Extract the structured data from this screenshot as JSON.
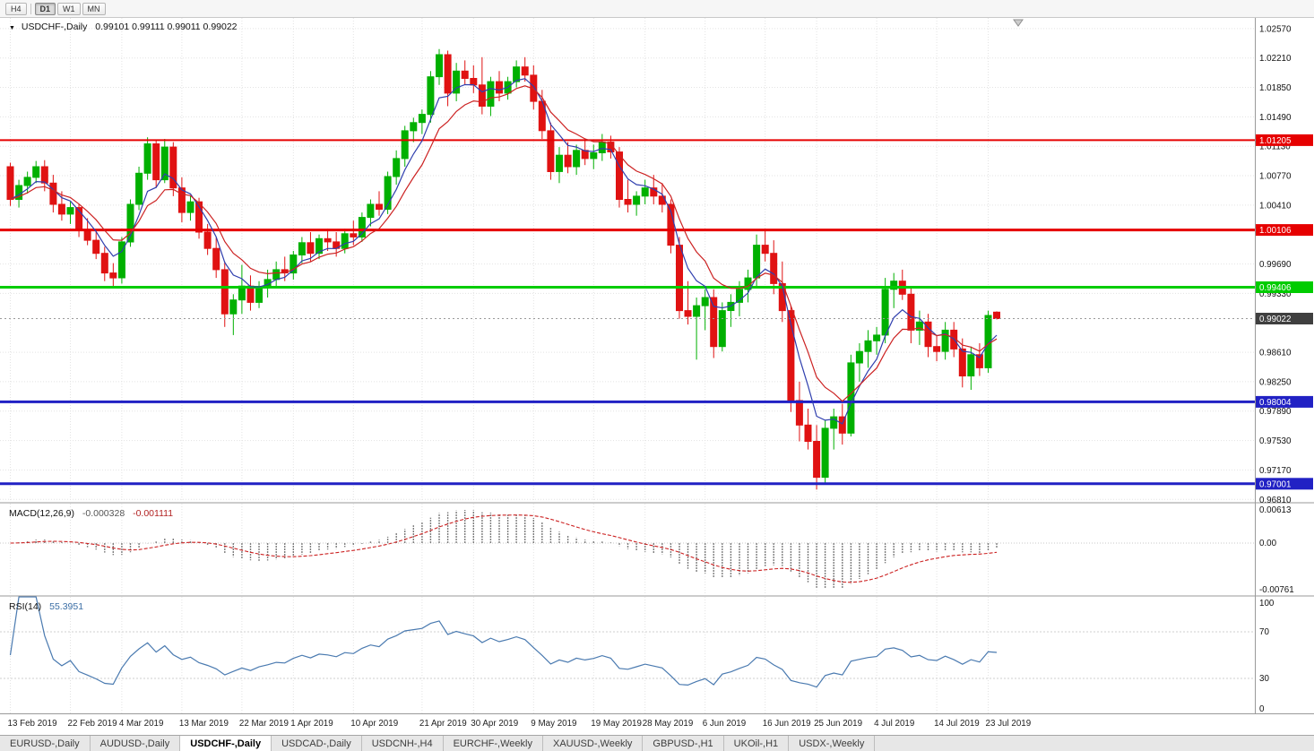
{
  "icons": {
    "dropdown": "▼"
  },
  "toolbar": {
    "buttons": [
      {
        "label": "H4",
        "active": false
      },
      {
        "label": "D1",
        "active": true
      },
      {
        "label": "W1",
        "active": false
      },
      {
        "label": "MN",
        "active": false
      }
    ]
  },
  "tabs": [
    {
      "label": "EURUSD-,Daily",
      "active": false
    },
    {
      "label": "AUDUSD-,Daily",
      "active": false
    },
    {
      "label": "USDCHF-,Daily",
      "active": true
    },
    {
      "label": "USDCAD-,Daily",
      "active": false
    },
    {
      "label": "USDCNH-,H4",
      "active": false
    },
    {
      "label": "EURCHF-,Weekly",
      "active": false
    },
    {
      "label": "XAUUSD-,Weekly",
      "active": false
    },
    {
      "label": "GBPUSD-,H1",
      "active": false
    },
    {
      "label": "UKOil-,H1",
      "active": false
    },
    {
      "label": "USDX-,Weekly",
      "active": false
    }
  ],
  "chart_data": {
    "type": "candlestick",
    "title": {
      "symbol": "USDCHF-,Daily",
      "ohlc": "0.99101 0.99111 0.99011 0.99022"
    },
    "ylim": [
      0.9678,
      1.027
    ],
    "y_axis_labels": [
      "1.02570",
      "1.02210",
      "1.01850",
      "1.01490",
      "1.01130",
      "1.00770",
      "1.00410",
      "0.99690",
      "0.99330",
      "0.98610",
      "0.98250",
      "0.97890",
      "0.97530",
      "0.97170",
      "0.96810"
    ],
    "colors": {
      "bull": "#00b000",
      "bear": "#e01212"
    },
    "hlines": [
      {
        "label": "1.01205",
        "value": 1.01205,
        "color": "#e60000",
        "width": 2
      },
      {
        "label": "1.00106",
        "value": 1.00106,
        "color": "#e60000",
        "width": 3
      },
      {
        "label": "0.99406",
        "value": 0.99406,
        "color": "#00cc00",
        "width": 3
      },
      {
        "label": "0.98004",
        "value": 0.98004,
        "color": "#2121c4",
        "width": 3
      },
      {
        "label": "0.97001",
        "value": 0.97001,
        "color": "#2121c4",
        "width": 3
      }
    ],
    "bid_line": {
      "label": "0.99022",
      "value": 0.99022,
      "badge_color": "#3f3f3f"
    },
    "moving_averages": [
      {
        "period": 5,
        "method": "ema",
        "color": "#2f3fae"
      },
      {
        "period": 9,
        "method": "ema",
        "color": "#cc2222"
      }
    ],
    "macd": {
      "label": "MACD(12,26,9)",
      "params": [
        12,
        26,
        9
      ],
      "value_main": "-0.000328",
      "value_signal": "-0.001111",
      "axis_labels": [
        "0.00613",
        "0.00",
        "-0.00761"
      ],
      "histogram_color": "#7d7d7d",
      "signal_color": "#cc2222"
    },
    "rsi": {
      "label": "RSI(14)",
      "params": [
        14
      ],
      "value": "55.3951",
      "axis_labels": [
        "100",
        "70",
        "30",
        "0"
      ],
      "levels": [
        70,
        30
      ],
      "color": "#4a7ab0"
    },
    "xticks": [
      {
        "i": 0,
        "label": "13 Feb 2019"
      },
      {
        "i": 7,
        "label": "22 Feb 2019"
      },
      {
        "i": 13,
        "label": "4 Mar 2019"
      },
      {
        "i": 20,
        "label": "13 Mar 2019"
      },
      {
        "i": 27,
        "label": "22 Mar 2019"
      },
      {
        "i": 33,
        "label": "1 Apr 2019"
      },
      {
        "i": 40,
        "label": "10 Apr 2019"
      },
      {
        "i": 48,
        "label": "21 Apr 2019"
      },
      {
        "i": 54,
        "label": "30 Apr 2019"
      },
      {
        "i": 61,
        "label": "9 May 2019"
      },
      {
        "i": 68,
        "label": "19 May 2019"
      },
      {
        "i": 74,
        "label": "28 May 2019"
      },
      {
        "i": 81,
        "label": "6 Jun 2019"
      },
      {
        "i": 88,
        "label": "16 Jun 2019"
      },
      {
        "i": 94,
        "label": "25 Jun 2019"
      },
      {
        "i": 101,
        "label": "4 Jul 2019"
      },
      {
        "i": 108,
        "label": "14 Jul 2019"
      },
      {
        "i": 114,
        "label": "23 Jul 2019"
      }
    ],
    "candles": [
      [
        1.0088,
        1.0093,
        1.004,
        1.0048
      ],
      [
        1.0048,
        1.0072,
        1.0038,
        1.0065
      ],
      [
        1.0065,
        1.0082,
        1.0055,
        1.0075
      ],
      [
        1.0075,
        1.0095,
        1.0068,
        1.0088
      ],
      [
        1.0088,
        1.0096,
        1.0058,
        1.0068
      ],
      [
        1.0068,
        1.0078,
        1.0032,
        1.0042
      ],
      [
        1.0042,
        1.0058,
        1.0022,
        1.003
      ],
      [
        1.003,
        1.0045,
        1.0018,
        1.0038
      ],
      [
        1.0038,
        1.0042,
        1.0002,
        1.001
      ],
      [
        1.001,
        1.0025,
        0.9992,
        0.9998
      ],
      [
        0.9998,
        1.0012,
        0.9975,
        0.9982
      ],
      [
        0.9982,
        0.999,
        0.9948,
        0.9958
      ],
      [
        0.9958,
        0.997,
        0.994,
        0.9952
      ],
      [
        0.9952,
        1.0002,
        0.9945,
        0.9996
      ],
      [
        0.9996,
        1.0048,
        0.999,
        1.0042
      ],
      [
        1.0042,
        1.0088,
        1.0035,
        1.008
      ],
      [
        1.008,
        1.0124,
        1.0072,
        1.0116
      ],
      [
        1.0116,
        1.012,
        1.0062,
        1.0072
      ],
      [
        1.0072,
        1.0122,
        1.0068,
        1.0112
      ],
      [
        1.0112,
        1.0118,
        1.0052,
        1.0062
      ],
      [
        1.0062,
        1.0075,
        1.002,
        1.0032
      ],
      [
        1.0032,
        1.0052,
        1.0022,
        1.0045
      ],
      [
        1.0045,
        1.005,
        1.0,
        1.0008
      ],
      [
        1.0008,
        1.0018,
        0.998,
        0.9988
      ],
      [
        0.9988,
        1.0002,
        0.9952,
        0.9962
      ],
      [
        0.9962,
        0.9972,
        0.9892,
        0.9908
      ],
      [
        0.9908,
        0.9932,
        0.9882,
        0.9925
      ],
      [
        0.9925,
        0.9968,
        0.9908,
        0.9942
      ],
      [
        0.9942,
        0.9955,
        0.9912,
        0.9922
      ],
      [
        0.9922,
        0.9948,
        0.9915,
        0.994
      ],
      [
        0.994,
        0.9962,
        0.9928,
        0.995
      ],
      [
        0.995,
        0.9972,
        0.994,
        0.9962
      ],
      [
        0.9962,
        0.9978,
        0.9948,
        0.9958
      ],
      [
        0.9958,
        0.9985,
        0.995,
        0.998
      ],
      [
        0.998,
        1.0002,
        0.997,
        0.9995
      ],
      [
        0.9995,
        1.0008,
        0.9972,
        0.9982
      ],
      [
        0.9982,
        1.0005,
        0.9975,
        1.0
      ],
      [
        1.0,
        1.0012,
        0.9985,
        0.9996
      ],
      [
        0.9996,
        1.0008,
        0.9978,
        0.9988
      ],
      [
        0.9988,
        1.0012,
        0.9982,
        1.0006
      ],
      [
        1.0006,
        1.0022,
        0.9992,
        1.0002
      ],
      [
        1.0002,
        1.0032,
        0.9996,
        1.0026
      ],
      [
        1.0026,
        1.0048,
        1.0015,
        1.0042
      ],
      [
        1.0042,
        1.0058,
        1.0028,
        1.0036
      ],
      [
        1.0036,
        1.0082,
        1.003,
        1.0076
      ],
      [
        1.0076,
        1.0108,
        1.0066,
        1.0098
      ],
      [
        1.0098,
        1.0138,
        1.0088,
        1.0132
      ],
      [
        1.0132,
        1.0148,
        1.0118,
        1.0142
      ],
      [
        1.0142,
        1.0158,
        1.0128,
        1.0152
      ],
      [
        1.0152,
        1.0205,
        1.0142,
        1.0198
      ],
      [
        1.0198,
        1.0232,
        1.0188,
        1.0225
      ],
      [
        1.0225,
        1.023,
        1.0162,
        1.0178
      ],
      [
        1.0178,
        1.0215,
        1.0168,
        1.0205
      ],
      [
        1.0205,
        1.0218,
        1.0188,
        1.0196
      ],
      [
        1.0196,
        1.0212,
        1.0178,
        1.0188
      ],
      [
        1.0188,
        1.0222,
        1.0152,
        1.0162
      ],
      [
        1.0162,
        1.0198,
        1.015,
        1.0192
      ],
      [
        1.0192,
        1.0205,
        1.0168,
        1.0178
      ],
      [
        1.0178,
        1.0198,
        1.017,
        1.0192
      ],
      [
        1.0192,
        1.0218,
        1.0185,
        1.021
      ],
      [
        1.021,
        1.0222,
        1.0192,
        1.02
      ],
      [
        1.02,
        1.0212,
        1.0158,
        1.0168
      ],
      [
        1.0168,
        1.0182,
        1.0122,
        1.0132
      ],
      [
        1.0132,
        1.0142,
        1.0072,
        1.0082
      ],
      [
        1.0082,
        1.0112,
        1.0068,
        1.0102
      ],
      [
        1.0102,
        1.0118,
        1.008,
        1.0088
      ],
      [
        1.0088,
        1.0115,
        1.0078,
        1.0108
      ],
      [
        1.0108,
        1.0122,
        1.009,
        1.0098
      ],
      [
        1.0098,
        1.0115,
        1.0085,
        1.0105
      ],
      [
        1.0105,
        1.0128,
        1.0095,
        1.0118
      ],
      [
        1.0118,
        1.0126,
        1.0098,
        1.0106
      ],
      [
        1.0106,
        1.0112,
        1.0038,
        1.0048
      ],
      [
        1.0048,
        1.0072,
        1.0032,
        1.0042
      ],
      [
        1.0042,
        1.0058,
        1.0028,
        1.0052
      ],
      [
        1.0052,
        1.0072,
        1.0042,
        1.0062
      ],
      [
        1.0062,
        1.0078,
        1.0042,
        1.0052
      ],
      [
        1.0052,
        1.0068,
        1.0032,
        1.0042
      ],
      [
        1.0042,
        1.0048,
        0.9982,
        0.9992
      ],
      [
        0.9992,
        1.0002,
        0.9902,
        0.9912
      ],
      [
        0.9912,
        0.9948,
        0.9895,
        0.9905
      ],
      [
        0.9905,
        0.9928,
        0.9852,
        0.9918
      ],
      [
        0.9918,
        0.9938,
        0.9888,
        0.9928
      ],
      [
        0.9928,
        0.9938,
        0.9854,
        0.9868
      ],
      [
        0.9868,
        0.9922,
        0.9862,
        0.9912
      ],
      [
        0.9912,
        0.9932,
        0.9892,
        0.9922
      ],
      [
        0.9922,
        0.9948,
        0.9905,
        0.9938
      ],
      [
        0.9938,
        0.9962,
        0.9922,
        0.9952
      ],
      [
        0.9952,
        1.0005,
        0.9942,
        0.9992
      ],
      [
        0.9992,
        1.0012,
        0.9972,
        0.9982
      ],
      [
        0.9982,
        0.9998,
        0.9932,
        0.9945
      ],
      [
        0.9945,
        0.9972,
        0.9898,
        0.9912
      ],
      [
        0.9912,
        0.9918,
        0.9788,
        0.9802
      ],
      [
        0.9802,
        0.9825,
        0.9752,
        0.9772
      ],
      [
        0.9772,
        0.9792,
        0.9742,
        0.9752
      ],
      [
        0.9752,
        0.9772,
        0.9693,
        0.9708
      ],
      [
        0.9708,
        0.9778,
        0.97,
        0.9768
      ],
      [
        0.9768,
        0.9792,
        0.9742,
        0.9782
      ],
      [
        0.9782,
        0.9798,
        0.9748,
        0.9762
      ],
      [
        0.9762,
        0.9858,
        0.9758,
        0.9848
      ],
      [
        0.9848,
        0.9872,
        0.9825,
        0.9862
      ],
      [
        0.9862,
        0.9888,
        0.9842,
        0.9875
      ],
      [
        0.9875,
        0.9892,
        0.9858,
        0.9882
      ],
      [
        0.9882,
        0.9952,
        0.9872,
        0.9938
      ],
      [
        0.9938,
        0.9958,
        0.9915,
        0.9948
      ],
      [
        0.9948,
        0.9962,
        0.9925,
        0.9932
      ],
      [
        0.9932,
        0.9942,
        0.9872,
        0.9888
      ],
      [
        0.9888,
        0.9912,
        0.987,
        0.9898
      ],
      [
        0.9898,
        0.9908,
        0.9855,
        0.9868
      ],
      [
        0.9868,
        0.9882,
        0.985,
        0.9862
      ],
      [
        0.9862,
        0.9898,
        0.9852,
        0.9888
      ],
      [
        0.9888,
        0.9898,
        0.9855,
        0.9865
      ],
      [
        0.9865,
        0.9878,
        0.9818,
        0.9832
      ],
      [
        0.9832,
        0.9868,
        0.9815,
        0.9858
      ],
      [
        0.9858,
        0.9872,
        0.9832,
        0.9842
      ],
      [
        0.9842,
        0.9912,
        0.9836,
        0.9906
      ],
      [
        0.99101,
        0.99111,
        0.99011,
        0.99022
      ]
    ]
  }
}
